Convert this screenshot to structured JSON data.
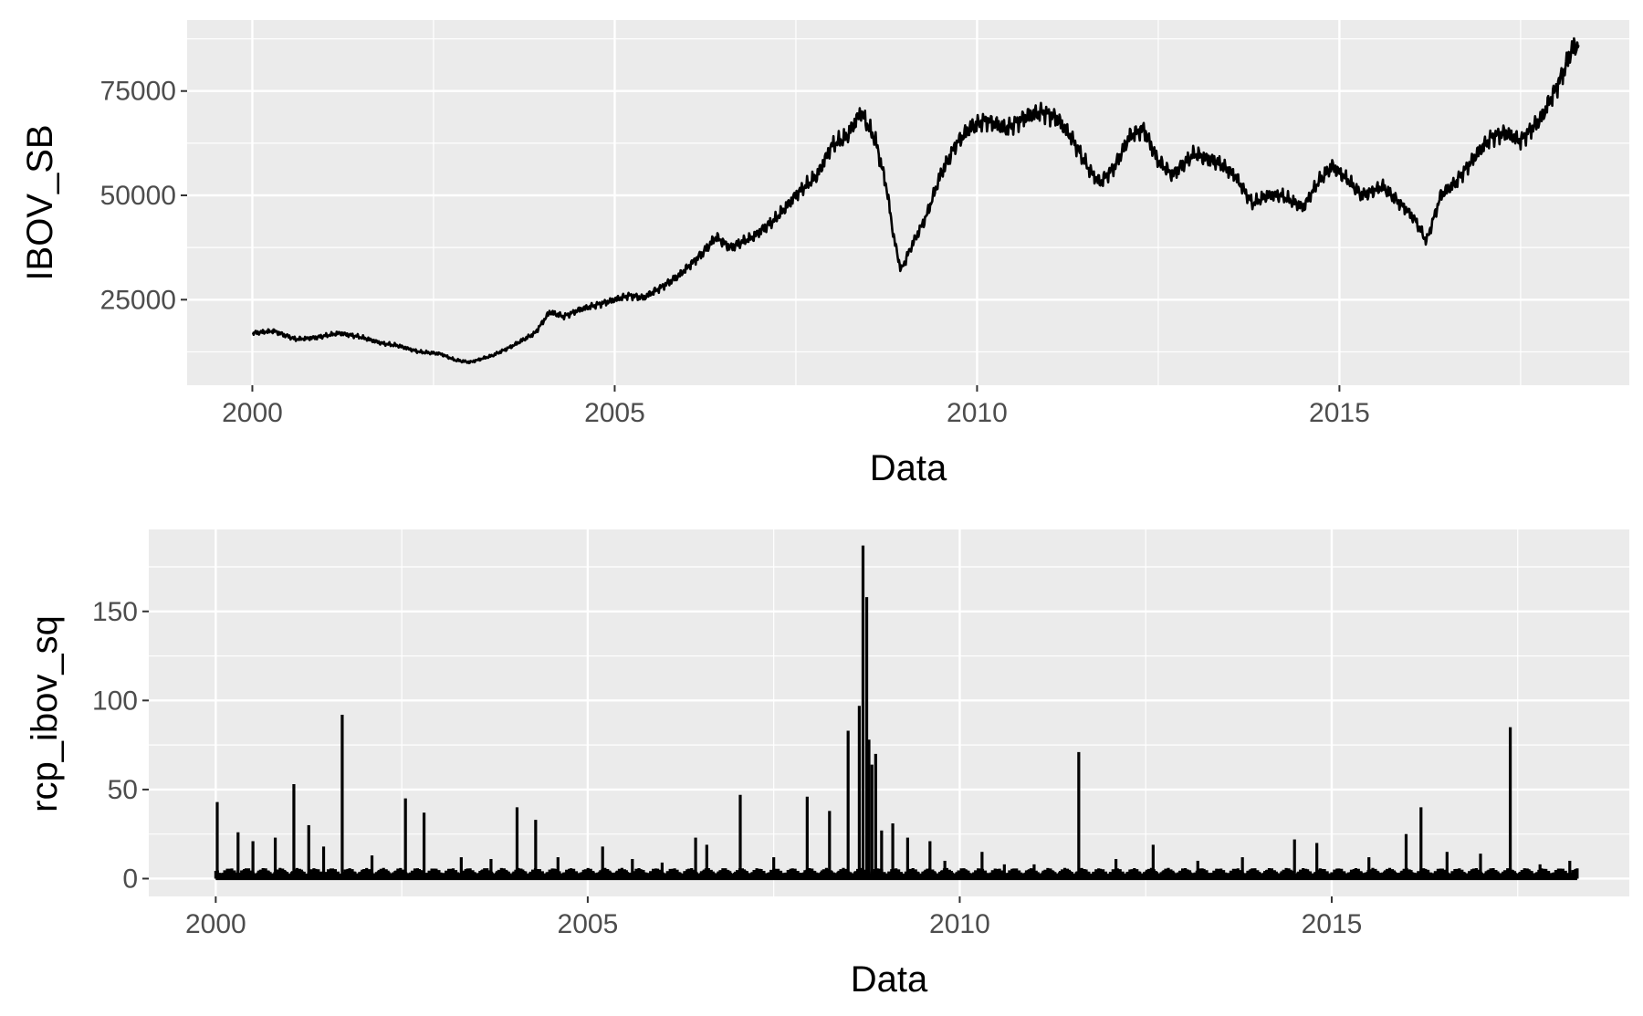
{
  "chart_data": [
    {
      "type": "line",
      "xlabel": "Data",
      "ylabel": "IBOV_SB",
      "x_ticks": [
        2000,
        2005,
        2010,
        2015
      ],
      "y_ticks": [
        25000,
        50000,
        75000
      ],
      "xlim": [
        1999.1,
        2019.0
      ],
      "ylim": [
        4500,
        92000
      ],
      "grid": true,
      "series": [
        {
          "x": [
            2000.0,
            2000.3,
            2000.6,
            2000.9,
            2001.2,
            2001.5,
            2001.8,
            2002.0,
            2002.3,
            2002.6,
            2002.8,
            2003.0,
            2003.3,
            2003.6,
            2003.9,
            2004.1,
            2004.3,
            2004.5,
            2004.8,
            2005.0,
            2005.2,
            2005.4,
            2005.6,
            2005.9,
            2006.2,
            2006.4,
            2006.6,
            2006.9,
            2007.2,
            2007.5,
            2007.8,
            2008.0,
            2008.2,
            2008.4,
            2008.6,
            2008.75,
            2008.85,
            2008.95,
            2009.1,
            2009.3,
            2009.5,
            2009.7,
            2009.9,
            2010.1,
            2010.4,
            2010.7,
            2010.9,
            2011.1,
            2011.3,
            2011.55,
            2011.7,
            2011.9,
            2012.1,
            2012.3,
            2012.5,
            2012.7,
            2013.0,
            2013.3,
            2013.55,
            2013.8,
            2014.0,
            2014.2,
            2014.5,
            2014.7,
            2014.9,
            2015.1,
            2015.3,
            2015.6,
            2015.9,
            2016.05,
            2016.2,
            2016.4,
            2016.6,
            2016.9,
            2017.1,
            2017.3,
            2017.5,
            2017.8,
            2018.0,
            2018.1,
            2018.2,
            2018.3
          ],
          "y": [
            17000,
            17500,
            15500,
            16000,
            17000,
            16000,
            14500,
            14000,
            12500,
            12000,
            10500,
            10000,
            11500,
            14000,
            17000,
            22000,
            21000,
            22500,
            24000,
            25000,
            26000,
            25500,
            27500,
            31000,
            36000,
            40000,
            37500,
            40000,
            44000,
            50000,
            55000,
            62000,
            64000,
            70000,
            63000,
            52000,
            40000,
            32000,
            38000,
            45000,
            55000,
            62000,
            66000,
            68000,
            66000,
            69000,
            70000,
            68500,
            64000,
            56000,
            53000,
            57000,
            64000,
            66000,
            58000,
            55000,
            60000,
            58000,
            55000,
            48000,
            50000,
            50000,
            47000,
            53000,
            57000,
            54000,
            50000,
            52000,
            47000,
            44000,
            39000,
            50000,
            53000,
            60000,
            64000,
            65000,
            63000,
            69000,
            76000,
            80000,
            85000,
            86000
          ]
        }
      ]
    },
    {
      "type": "bar",
      "xlabel": "Data",
      "ylabel": "rcp_ibov_sq",
      "x_ticks": [
        2000,
        2005,
        2010,
        2015
      ],
      "y_ticks": [
        0,
        50,
        100,
        150
      ],
      "xlim": [
        1999.1,
        2019.0
      ],
      "ylim": [
        -10,
        196
      ],
      "grid": true,
      "series": [
        {
          "x": [
            2000.02,
            2000.3,
            2000.5,
            2000.8,
            2001.05,
            2001.25,
            2001.45,
            2001.7,
            2002.1,
            2002.55,
            2002.8,
            2003.3,
            2003.7,
            2004.05,
            2004.3,
            2004.6,
            2005.2,
            2005.6,
            2006.0,
            2006.45,
            2006.6,
            2007.05,
            2007.5,
            2007.95,
            2008.25,
            2008.5,
            2008.65,
            2008.7,
            2008.75,
            2008.78,
            2008.82,
            2008.87,
            2008.95,
            2009.1,
            2009.3,
            2009.6,
            2009.8,
            2010.3,
            2010.6,
            2011.0,
            2011.6,
            2012.1,
            2012.6,
            2013.2,
            2013.8,
            2014.5,
            2014.8,
            2015.5,
            2016.0,
            2016.2,
            2016.55,
            2017.0,
            2017.4,
            2017.8,
            2018.2
          ],
          "y": [
            43,
            26,
            21,
            23,
            53,
            30,
            18,
            92,
            13,
            45,
            37,
            12,
            11,
            40,
            33,
            12,
            18,
            11,
            9,
            23,
            19,
            47,
            12,
            46,
            38,
            83,
            97,
            187,
            158,
            78,
            64,
            70,
            27,
            31,
            23,
            21,
            10,
            15,
            8,
            8,
            71,
            11,
            19,
            10,
            12,
            22,
            20,
            12,
            25,
            40,
            15,
            14,
            85,
            8,
            10
          ]
        }
      ]
    }
  ]
}
